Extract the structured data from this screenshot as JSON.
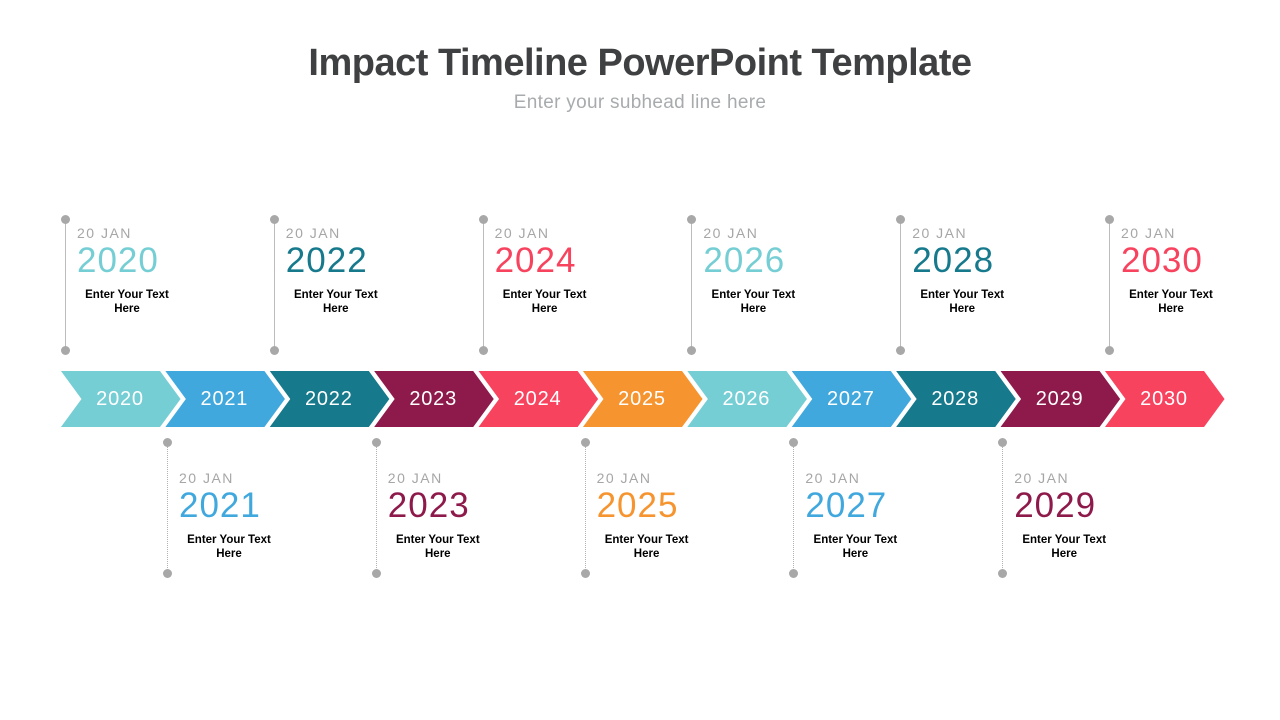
{
  "header": {
    "title": "Impact Timeline PowerPoint Template",
    "subtitle": "Enter your subhead line here"
  },
  "palette": {
    "teal_light": "#76CED5",
    "blue": "#41A8DE",
    "teal_dark": "#16798C",
    "maroon": "#8E1A4B",
    "pink": "#F8435F",
    "orange": "#F6942F",
    "title_text": "#3F4042",
    "subtitle_text": "#A8ABAD",
    "date_gray": "#A6A6A6",
    "connector_gray": "#BCBCBC",
    "body_text": "#000000"
  },
  "timeline": {
    "chevrons": [
      {
        "year": "2020",
        "color": "#76CED5"
      },
      {
        "year": "2021",
        "color": "#41A8DE"
      },
      {
        "year": "2022",
        "color": "#16798C"
      },
      {
        "year": "2023",
        "color": "#8E1A4B"
      },
      {
        "year": "2024",
        "color": "#F8435F"
      },
      {
        "year": "2025",
        "color": "#F6942F"
      },
      {
        "year": "2026",
        "color": "#76CED5"
      },
      {
        "year": "2027",
        "color": "#41A8DE"
      },
      {
        "year": "2028",
        "color": "#16798C"
      },
      {
        "year": "2029",
        "color": "#8E1A4B"
      },
      {
        "year": "2030",
        "color": "#F8435F"
      }
    ],
    "callouts_top": [
      {
        "date": "20 JAN",
        "year": "2020",
        "color": "#76CED5",
        "text": "Enter Your Text Here"
      },
      {
        "date": "20 JAN",
        "year": "2022",
        "color": "#16798C",
        "text": "Enter Your Text Here"
      },
      {
        "date": "20 JAN",
        "year": "2024",
        "color": "#F8435F",
        "text": "Enter Your Text Here"
      },
      {
        "date": "20 JAN",
        "year": "2026",
        "color": "#76CED5",
        "text": "Enter Your Text Here"
      },
      {
        "date": "20 JAN",
        "year": "2028",
        "color": "#16798C",
        "text": "Enter Your Text Here"
      },
      {
        "date": "20 JAN",
        "year": "2030",
        "color": "#F8435F",
        "text": "Enter Your Text Here"
      }
    ],
    "callouts_bottom": [
      {
        "date": "20 JAN",
        "year": "2021",
        "color": "#41A8DE",
        "text": "Enter Your Text Here"
      },
      {
        "date": "20 JAN",
        "year": "2023",
        "color": "#8E1A4B",
        "text": "Enter Your Text Here"
      },
      {
        "date": "20 JAN",
        "year": "2025",
        "color": "#F6942F",
        "text": "Enter Your Text Here"
      },
      {
        "date": "20 JAN",
        "year": "2027",
        "color": "#41A8DE",
        "text": "Enter Your Text Here"
      },
      {
        "date": "20 JAN",
        "year": "2029",
        "color": "#8E1A4B",
        "text": "Enter Your Text Here"
      }
    ]
  }
}
